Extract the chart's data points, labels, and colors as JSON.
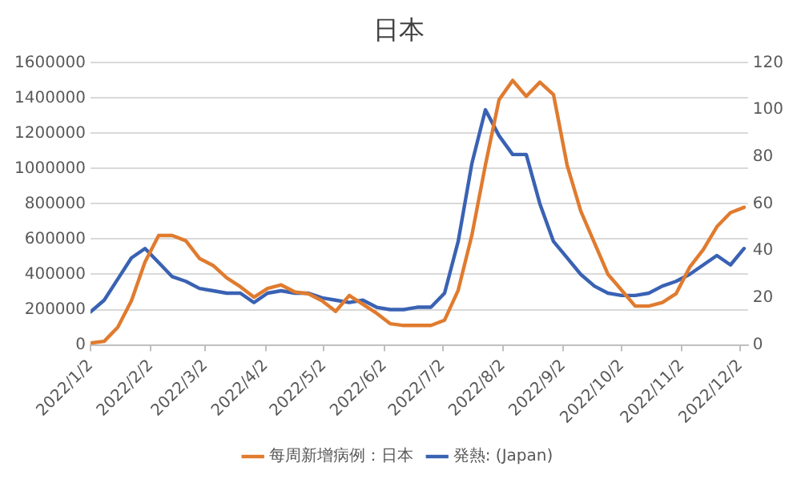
{
  "chart_data": {
    "type": "line",
    "title": "日本",
    "x": [
      "2022-01-02",
      "2022-01-09",
      "2022-01-16",
      "2022-01-23",
      "2022-01-30",
      "2022-02-06",
      "2022-02-13",
      "2022-02-20",
      "2022-02-27",
      "2022-03-06",
      "2022-03-13",
      "2022-03-20",
      "2022-03-27",
      "2022-04-03",
      "2022-04-10",
      "2022-04-17",
      "2022-04-24",
      "2022-05-01",
      "2022-05-08",
      "2022-05-15",
      "2022-05-22",
      "2022-05-29",
      "2022-06-05",
      "2022-06-12",
      "2022-06-19",
      "2022-06-26",
      "2022-07-03",
      "2022-07-10",
      "2022-07-17",
      "2022-07-24",
      "2022-07-31",
      "2022-08-07",
      "2022-08-14",
      "2022-08-21",
      "2022-08-28",
      "2022-09-04",
      "2022-09-11",
      "2022-09-18",
      "2022-09-25",
      "2022-10-02",
      "2022-10-09",
      "2022-10-16",
      "2022-10-23",
      "2022-10-30",
      "2022-11-06",
      "2022-11-13",
      "2022-11-20",
      "2022-11-27",
      "2022-12-04"
    ],
    "series": [
      {
        "name": "每周新增病例：日本",
        "color": "#e07b2f",
        "values": [
          10000,
          20000,
          100000,
          250000,
          470000,
          620000,
          620000,
          590000,
          490000,
          450000,
          380000,
          330000,
          270000,
          320000,
          340000,
          300000,
          290000,
          250000,
          190000,
          280000,
          230000,
          180000,
          120000,
          110000,
          110000,
          110000,
          140000,
          310000,
          620000,
          1020000,
          1390000,
          1500000,
          1410000,
          1490000,
          1420000,
          1020000,
          760000,
          580000,
          400000,
          310000,
          220000,
          220000,
          240000,
          290000,
          440000,
          540000,
          670000,
          750000,
          780000
        ]
      },
      {
        "name": "発熱: (Japan)",
        "color": "#3a62b3",
        "axis": "y2",
        "values": [
          14,
          19,
          28,
          37,
          41,
          35,
          29,
          27,
          24,
          23,
          22,
          22,
          18,
          22,
          23,
          22,
          22,
          20,
          19,
          18,
          19,
          16,
          15,
          15,
          16,
          16,
          22,
          44,
          77,
          100,
          89,
          81,
          81,
          60,
          44,
          37,
          30,
          25,
          22,
          21,
          21,
          22,
          25,
          27,
          30,
          34,
          38,
          34,
          41
        ]
      }
    ],
    "xlim": [
      "2022-01-02",
      "2022-12-06"
    ],
    "xticks": [
      {
        "value": "2022-01-02",
        "label": "2022/1/2"
      },
      {
        "value": "2022-02-02",
        "label": "2022/2/2"
      },
      {
        "value": "2022-03-02",
        "label": "2022/3/2"
      },
      {
        "value": "2022-04-02",
        "label": "2022/4/2"
      },
      {
        "value": "2022-05-02",
        "label": "2022/5/2"
      },
      {
        "value": "2022-06-02",
        "label": "2022/6/2"
      },
      {
        "value": "2022-07-02",
        "label": "2022/7/2"
      },
      {
        "value": "2022-08-02",
        "label": "2022/8/2"
      },
      {
        "value": "2022-09-02",
        "label": "2022/9/2"
      },
      {
        "value": "2022-10-02",
        "label": "2022/10/2"
      },
      {
        "value": "2022-11-02",
        "label": "2022/11/2"
      },
      {
        "value": "2022-12-02",
        "label": "2022/12/2"
      }
    ],
    "ylim": [
      0,
      1600000
    ],
    "yticks": [
      0,
      200000,
      400000,
      600000,
      800000,
      1000000,
      1200000,
      1400000,
      1600000
    ],
    "y2lim": [
      0,
      120
    ],
    "y2ticks": [
      0,
      20,
      40,
      60,
      80,
      100,
      120
    ],
    "grid": "y",
    "legend": "bottom",
    "marker": "none",
    "line_style": "solid"
  }
}
